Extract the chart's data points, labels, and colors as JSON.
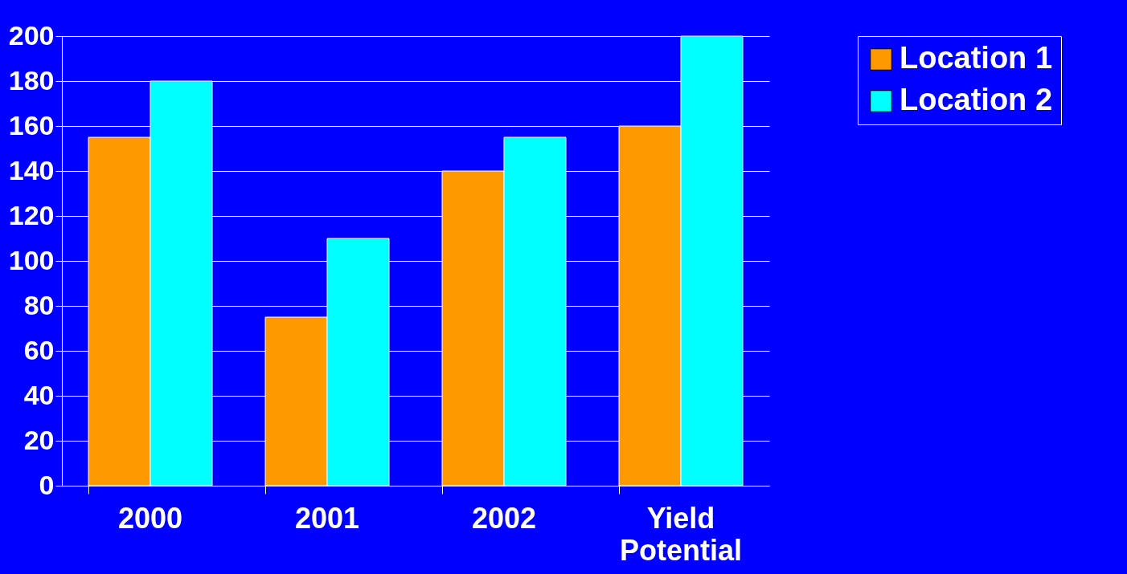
{
  "chart_data": {
    "type": "bar",
    "categories": [
      "2000",
      "2001",
      "2002",
      "Yield Potential"
    ],
    "series": [
      {
        "name": "Location 1",
        "color": "#ff9900",
        "values": [
          155,
          75,
          140,
          160
        ]
      },
      {
        "name": "Location 2",
        "color": "#00ffff",
        "values": [
          180,
          110,
          155,
          200
        ]
      }
    ],
    "ylim": [
      0,
      200
    ],
    "yticks": [
      0,
      20,
      40,
      60,
      80,
      100,
      120,
      140,
      160,
      180,
      200
    ],
    "grid": true,
    "legend": "right"
  }
}
